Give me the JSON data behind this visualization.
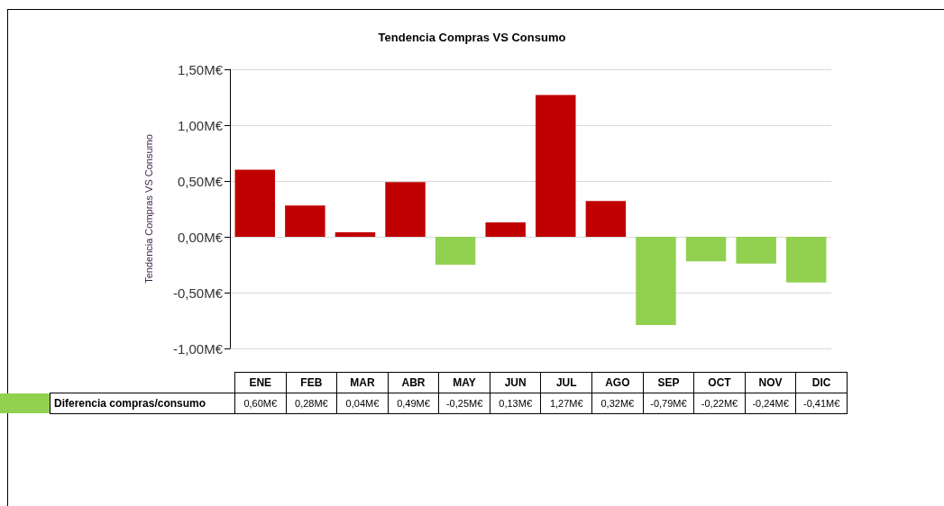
{
  "chart_data": {
    "type": "bar",
    "title": "Tendencia Compras VS Consumo",
    "ylabel": "Tendencia Compras VS Consumo",
    "categories": [
      "ENE",
      "FEB",
      "MAR",
      "ABR",
      "MAY",
      "JUN",
      "JUL",
      "AGO",
      "SEP",
      "OCT",
      "NOV",
      "DIC"
    ],
    "series": [
      {
        "name": "Diferencia compras/consumo",
        "color": "#92d050",
        "values": [
          0.6,
          0.28,
          0.04,
          0.49,
          -0.25,
          0.13,
          1.27,
          0.32,
          -0.79,
          -0.22,
          -0.24,
          -0.41
        ],
        "colors": [
          "#c00000",
          "#c00000",
          "#c00000",
          "#c00000",
          "#92d050",
          "#c00000",
          "#c00000",
          "#c00000",
          "#92d050",
          "#92d050",
          "#92d050",
          "#92d050"
        ],
        "value_labels": [
          "0,60M€",
          "0,28M€",
          "0,04M€",
          "0,49M€",
          "-0,25M€",
          "0,13M€",
          "1,27M€",
          "0,32M€",
          "-0,79M€",
          "-0,22M€",
          "-0,24M€",
          "-0,41M€"
        ]
      }
    ],
    "ylim": [
      -1.0,
      1.5
    ],
    "yticks": [
      {
        "value": -1.0,
        "label": "-1,00M€"
      },
      {
        "value": -0.5,
        "label": "-0,50M€"
      },
      {
        "value": 0,
        "label": "0,00M€"
      },
      {
        "value": 0.5,
        "label": "0,50M€"
      },
      {
        "value": 1.0,
        "label": "1,00M€"
      },
      {
        "value": 1.5,
        "label": "1,50M€"
      }
    ],
    "grid": "y",
    "legend": "bottom"
  }
}
